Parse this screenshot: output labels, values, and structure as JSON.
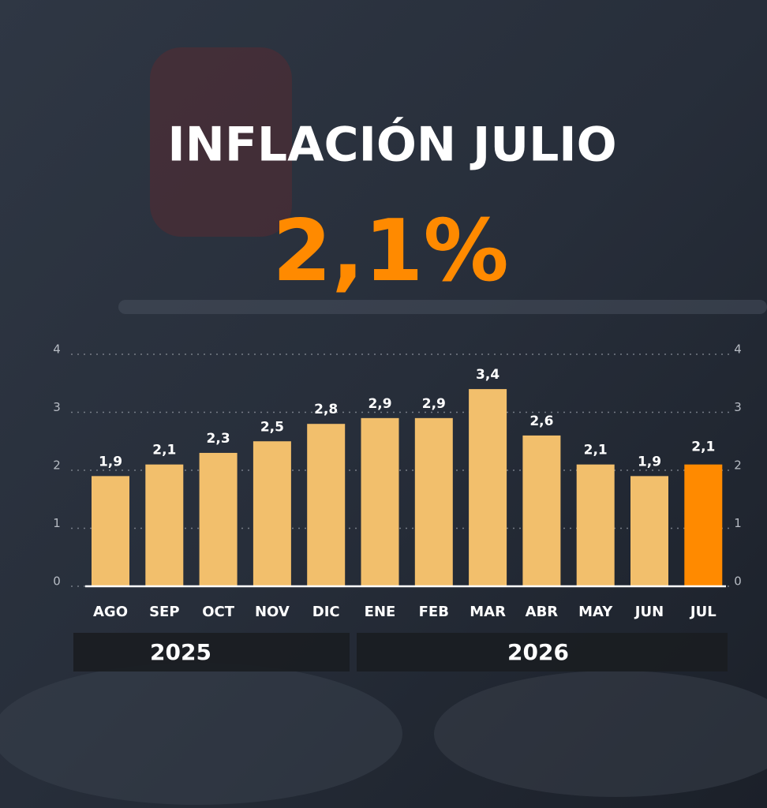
{
  "chart_data": {
    "type": "bar",
    "title": "INFLACIÓN JULIO",
    "headline": "2,1%",
    "categories": [
      "AGO",
      "SEP",
      "OCT",
      "NOV",
      "DIC",
      "ENE",
      "FEB",
      "MAR",
      "ABR",
      "MAY",
      "JUN",
      "JUL"
    ],
    "values": [
      1.9,
      2.1,
      2.3,
      2.5,
      2.8,
      2.9,
      2.9,
      3.4,
      2.6,
      2.1,
      1.9,
      2.1
    ],
    "value_labels": [
      "1,9",
      "2,1",
      "2,3",
      "2,5",
      "2,8",
      "2,9",
      "2,9",
      "3,4",
      "2,6",
      "2,1",
      "1,9",
      "2,1"
    ],
    "colors": [
      "#f2bf6c",
      "#f2bf6c",
      "#f2bf6c",
      "#f2bf6c",
      "#f2bf6c",
      "#f2bf6c",
      "#f2bf6c",
      "#f2bf6c",
      "#f2bf6c",
      "#f2bf6c",
      "#f2bf6c",
      "#ff8a00"
    ],
    "ylim": [
      0,
      4
    ],
    "yticks": [
      0,
      1,
      2,
      3,
      4
    ],
    "y2lim": [
      0,
      4
    ],
    "y2ticks": [
      0,
      1,
      2,
      3,
      4
    ],
    "grid": true,
    "year_labels": [
      "2025",
      "2026"
    ]
  }
}
